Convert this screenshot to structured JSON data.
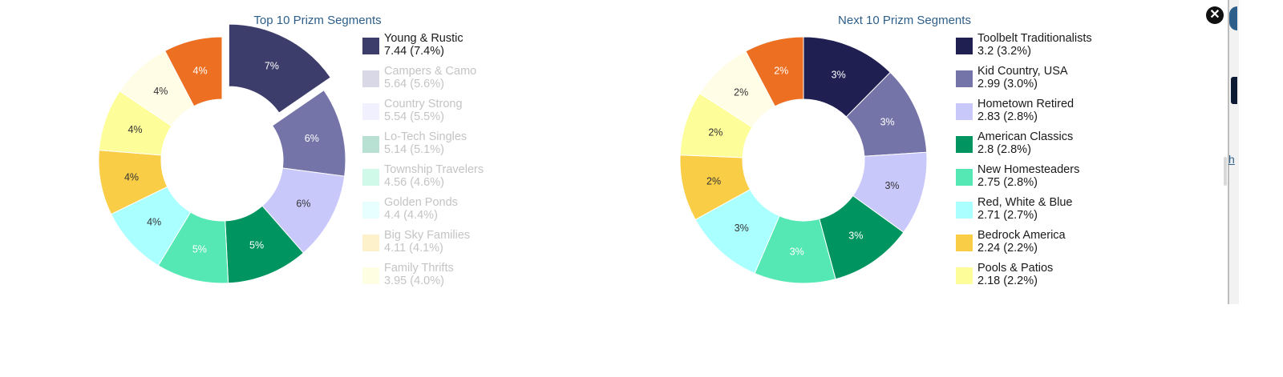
{
  "modal": {
    "close_icon": "close-x-icon"
  },
  "backdrop": {
    "link_text": "h"
  },
  "chart_data": [
    {
      "type": "pie",
      "title": "Top 10 Prizm Segments",
      "segments": [
        {
          "name": "Young & Rustic",
          "value": 7.44,
          "pct": "7.4%",
          "label": "7%",
          "color": "#3d3d6b",
          "label_color": "#ffffff",
          "legend_visible": true,
          "exploded": true,
          "in_legend": true
        },
        {
          "name": "Campers & Camo",
          "value": 5.64,
          "pct": "5.6%",
          "label": "6%",
          "color": "#7574a8",
          "label_color": "#ffffff",
          "legend_visible": false,
          "in_legend": true
        },
        {
          "name": "Country Strong",
          "value": 5.54,
          "pct": "5.5%",
          "label": "6%",
          "color": "#c9c8fb",
          "label_color": "#333333",
          "legend_visible": false,
          "in_legend": true
        },
        {
          "name": "Lo-Tech Singles",
          "value": 5.14,
          "pct": "5.1%",
          "label": "5%",
          "color": "#009560",
          "label_color": "#ffffff",
          "legend_visible": false,
          "in_legend": true
        },
        {
          "name": "Township Travelers",
          "value": 4.56,
          "pct": "4.6%",
          "label": "5%",
          "color": "#55e8b5",
          "label_color": "#ffffff",
          "legend_visible": false,
          "in_legend": true
        },
        {
          "name": "Golden Ponds",
          "value": 4.4,
          "pct": "4.4%",
          "label": "4%",
          "color": "#aaffff",
          "label_color": "#333333",
          "legend_visible": false,
          "in_legend": true
        },
        {
          "name": "Big Sky Families",
          "value": 4.11,
          "pct": "4.1%",
          "label": "4%",
          "color": "#f9cd46",
          "label_color": "#333333",
          "legend_visible": false,
          "in_legend": true
        },
        {
          "name": "Family Thrifts",
          "value": 3.95,
          "pct": "4.0%",
          "label": "4%",
          "color": "#fdfd99",
          "label_color": "#333333",
          "legend_visible": false,
          "in_legend": true
        },
        {
          "name": "",
          "value": 3.8,
          "pct": "",
          "label": "4%",
          "color": "#fffde6",
          "label_color": "#333333",
          "legend_visible": false,
          "in_legend": false
        },
        {
          "name": "",
          "value": 3.7,
          "pct": "",
          "label": "4%",
          "color": "#ec6f22",
          "label_color": "#ffffff",
          "legend_visible": false,
          "in_legend": false
        }
      ]
    },
    {
      "type": "pie",
      "title": "Next 10 Prizm Segments",
      "segments": [
        {
          "name": "Toolbelt Traditionalists",
          "value": 3.2,
          "pct": "3.2%",
          "label": "3%",
          "color": "#1f1f52",
          "label_color": "#ffffff",
          "legend_visible": true,
          "in_legend": true
        },
        {
          "name": "Kid Country, USA",
          "value": 2.99,
          "pct": "3.0%",
          "label": "3%",
          "color": "#7574a8",
          "label_color": "#ffffff",
          "legend_visible": true,
          "in_legend": true
        },
        {
          "name": "Hometown Retired",
          "value": 2.83,
          "pct": "2.8%",
          "label": "3%",
          "color": "#c9c8fb",
          "label_color": "#333333",
          "legend_visible": true,
          "in_legend": true
        },
        {
          "name": "American Classics",
          "value": 2.8,
          "pct": "2.8%",
          "label": "3%",
          "color": "#009560",
          "label_color": "#ffffff",
          "legend_visible": true,
          "in_legend": true
        },
        {
          "name": "New Homesteaders",
          "value": 2.75,
          "pct": "2.8%",
          "label": "3%",
          "color": "#55e8b5",
          "label_color": "#ffffff",
          "legend_visible": true,
          "in_legend": true
        },
        {
          "name": "Red, White & Blue",
          "value": 2.71,
          "pct": "2.7%",
          "label": "3%",
          "color": "#aaffff",
          "label_color": "#333333",
          "legend_visible": true,
          "in_legend": true
        },
        {
          "name": "Bedrock America",
          "value": 2.24,
          "pct": "2.2%",
          "label": "2%",
          "color": "#f9cd46",
          "label_color": "#333333",
          "legend_visible": true,
          "in_legend": true
        },
        {
          "name": "Pools & Patios",
          "value": 2.18,
          "pct": "2.2%",
          "label": "2%",
          "color": "#fdfd99",
          "label_color": "#333333",
          "legend_visible": true,
          "in_legend": true
        },
        {
          "name": "",
          "value": 2.1,
          "pct": "",
          "label": "2%",
          "color": "#fffde6",
          "label_color": "#333333",
          "legend_visible": false,
          "in_legend": false
        },
        {
          "name": "",
          "value": 2.0,
          "pct": "",
          "label": "2%",
          "color": "#ec6f22",
          "label_color": "#ffffff",
          "legend_visible": false,
          "in_legend": false
        }
      ]
    }
  ]
}
